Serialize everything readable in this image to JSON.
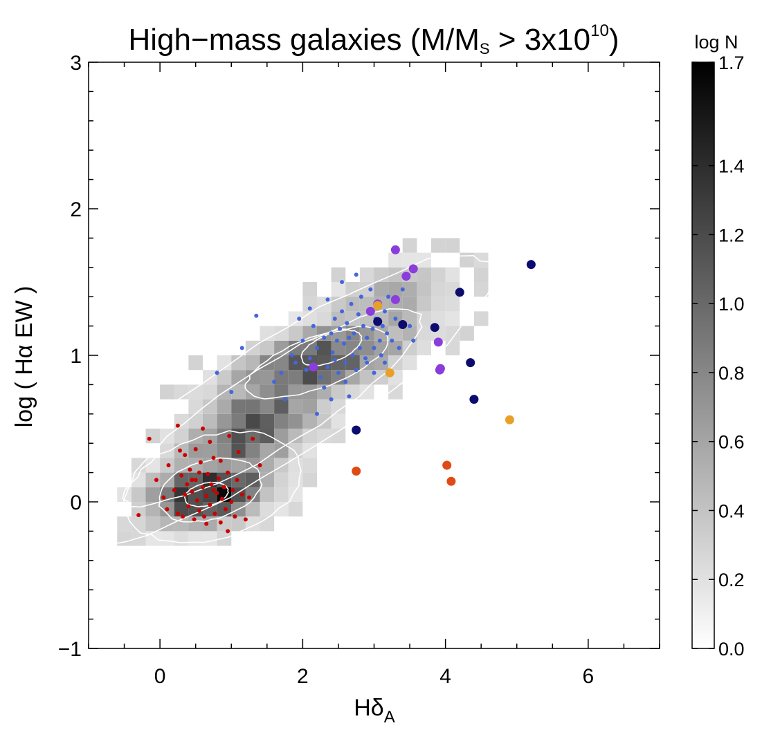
{
  "chart_data": {
    "type": "scatter",
    "title": {
      "prefix": "High−mass galaxies (M/M",
      "sub": "S",
      "mid": " > 3x10",
      "sup": "10",
      "suffix": ")"
    },
    "xlabel": {
      "main": "Hδ",
      "sub": "A"
    },
    "ylabel": "log ( Hα EW )",
    "xlim": [
      -1,
      7
    ],
    "ylim": [
      -1.0,
      3.0
    ],
    "xticks": [
      0,
      2,
      4,
      6
    ],
    "xtick_labels": [
      "0",
      "2",
      "4",
      "6"
    ],
    "yticks": [
      -1,
      0,
      1,
      2,
      3
    ],
    "ytick_labels": [
      "−1",
      "0",
      "1",
      "2",
      "3"
    ],
    "colorbar": {
      "title": "log N",
      "range": [
        0.0,
        1.7
      ],
      "ticks": [
        0.0,
        0.2,
        0.4,
        0.6,
        0.8,
        1.0,
        1.2,
        1.4,
        1.7
      ],
      "tick_labels": [
        "0.0",
        "0.2",
        "0.4",
        "0.6",
        "0.8",
        "1.0",
        "1.2",
        "1.4",
        "1.7"
      ]
    },
    "density_background": {
      "description": "grey-scale 2D histogram of galaxies (log N)",
      "bin_width_x": 0.2,
      "bin_height_y": 0.1,
      "components": [
        {
          "cx": 0.7,
          "cy": 0.07,
          "sx": 0.55,
          "sy": 0.15,
          "rho": 0.3,
          "peak": 1.65
        },
        {
          "cx": 2.2,
          "cy": 0.95,
          "sx": 0.9,
          "sy": 0.22,
          "rho": 0.65,
          "peak": 1.15
        },
        {
          "cx": 1.3,
          "cy": 0.5,
          "sx": 0.7,
          "sy": 0.3,
          "rho": 0.6,
          "peak": 1.1
        },
        {
          "cx": 3.2,
          "cy": 1.35,
          "sx": 0.6,
          "sy": 0.18,
          "rho": 0.4,
          "peak": 0.6
        }
      ]
    },
    "series": [
      {
        "name": "red-small",
        "color": "#cc0000",
        "radius": "small",
        "points": [
          [
            -0.3,
            -0.09
          ],
          [
            -0.15,
            0.43
          ],
          [
            -0.05,
            0.15
          ],
          [
            0.05,
            0.03
          ],
          [
            0.1,
            -0.05
          ],
          [
            0.12,
            0.25
          ],
          [
            0.2,
            0.08
          ],
          [
            0.25,
            -0.08
          ],
          [
            0.28,
            0.35
          ],
          [
            0.3,
            0.18
          ],
          [
            0.32,
            -0.1
          ],
          [
            0.35,
            0.05
          ],
          [
            0.38,
            0.12
          ],
          [
            0.4,
            -0.03
          ],
          [
            0.42,
            0.22
          ],
          [
            0.45,
            0.07
          ],
          [
            0.48,
            -0.12
          ],
          [
            0.5,
            0.15
          ],
          [
            0.52,
            0.01
          ],
          [
            0.55,
            -0.06
          ],
          [
            0.57,
            0.27
          ],
          [
            0.6,
            0.1
          ],
          [
            0.62,
            -0.1
          ],
          [
            0.65,
            0.04
          ],
          [
            0.67,
            0.19
          ],
          [
            0.7,
            -0.02
          ],
          [
            0.72,
            0.12
          ],
          [
            0.75,
            0.3
          ],
          [
            0.77,
            -0.08
          ],
          [
            0.8,
            0.06
          ],
          [
            0.82,
            0.16
          ],
          [
            0.85,
            -0.14
          ],
          [
            0.87,
            0.02
          ],
          [
            0.9,
            0.1
          ],
          [
            0.92,
            -0.05
          ],
          [
            0.95,
            0.2
          ],
          [
            0.97,
            0.45
          ],
          [
            1.0,
            0.0
          ],
          [
            1.02,
            0.08
          ],
          [
            1.05,
            -0.1
          ],
          [
            1.08,
            0.15
          ],
          [
            1.1,
            0.34
          ],
          [
            1.15,
            0.05
          ],
          [
            1.2,
            -0.12
          ],
          [
            1.25,
            0.03
          ],
          [
            1.3,
            0.43
          ],
          [
            1.4,
            0.25
          ],
          [
            0.45,
            0.15
          ],
          [
            0.55,
            0.2
          ],
          [
            0.65,
            -0.15
          ],
          [
            0.75,
            0.08
          ],
          [
            0.85,
            0.28
          ],
          [
            0.35,
            0.32
          ],
          [
            0.25,
            0.52
          ],
          [
            0.95,
            -0.2
          ],
          [
            0.5,
            0.36
          ],
          [
            0.7,
            0.41
          ],
          [
            0.6,
            0.5
          ]
        ]
      },
      {
        "name": "blue-small",
        "color": "#4466dd",
        "radius": "small",
        "points": [
          [
            0.8,
            0.88
          ],
          [
            1.0,
            0.75
          ],
          [
            1.15,
            1.05
          ],
          [
            1.35,
            1.27
          ],
          [
            1.6,
            0.82
          ],
          [
            1.7,
            0.88
          ],
          [
            1.85,
            1.0
          ],
          [
            1.9,
            0.95
          ],
          [
            2.0,
            1.1
          ],
          [
            2.05,
            0.9
          ],
          [
            2.1,
            0.98
          ],
          [
            2.15,
            1.2
          ],
          [
            2.2,
            1.05
          ],
          [
            2.25,
            0.85
          ],
          [
            2.3,
            1.12
          ],
          [
            2.35,
            0.92
          ],
          [
            2.4,
            1.15
          ],
          [
            2.42,
            1.02
          ],
          [
            2.45,
            1.25
          ],
          [
            2.48,
            1.1
          ],
          [
            2.5,
            0.88
          ],
          [
            2.52,
            1.18
          ],
          [
            2.55,
            1.3
          ],
          [
            2.58,
            1.08
          ],
          [
            2.6,
            0.95
          ],
          [
            2.62,
            1.22
          ],
          [
            2.65,
            1.12
          ],
          [
            2.68,
            1.35
          ],
          [
            2.7,
            1.0
          ],
          [
            2.72,
            1.15
          ],
          [
            2.75,
            0.9
          ],
          [
            2.78,
            1.28
          ],
          [
            2.8,
            1.05
          ],
          [
            2.82,
            1.4
          ],
          [
            2.85,
            1.2
          ],
          [
            2.88,
            0.98
          ],
          [
            2.9,
            1.12
          ],
          [
            2.92,
            1.3
          ],
          [
            2.95,
            1.45
          ],
          [
            2.98,
            1.18
          ],
          [
            3.0,
            1.05
          ],
          [
            3.02,
            1.25
          ],
          [
            3.05,
            1.35
          ],
          [
            3.08,
            1.1
          ],
          [
            3.1,
            1.0
          ],
          [
            3.12,
            1.2
          ],
          [
            3.15,
            1.3
          ],
          [
            3.18,
            1.15
          ],
          [
            3.2,
            1.4
          ],
          [
            3.25,
            1.1
          ],
          [
            3.3,
            1.25
          ],
          [
            3.35,
            1.05
          ],
          [
            3.4,
            1.45
          ],
          [
            3.5,
            1.2
          ],
          [
            3.55,
            1.1
          ],
          [
            2.3,
            0.78
          ],
          [
            2.4,
            0.7
          ],
          [
            2.6,
            0.82
          ],
          [
            2.1,
            1.32
          ],
          [
            1.95,
            1.25
          ],
          [
            2.55,
            1.5
          ],
          [
            2.35,
            1.38
          ],
          [
            2.75,
            1.55
          ],
          [
            1.75,
            0.7
          ],
          [
            2.9,
            0.95
          ],
          [
            3.0,
            0.88
          ],
          [
            3.15,
            0.95
          ],
          [
            2.2,
            0.6
          ],
          [
            2.45,
            0.97
          ],
          [
            2.65,
            0.72
          ]
        ]
      },
      {
        "name": "purple",
        "color": "#8a3ddb",
        "radius": "large",
        "points": [
          [
            2.15,
            0.92
          ],
          [
            2.95,
            1.3
          ],
          [
            3.05,
            1.35
          ],
          [
            3.3,
            1.72
          ],
          [
            3.3,
            1.38
          ],
          [
            3.45,
            1.54
          ],
          [
            3.55,
            1.59
          ],
          [
            3.9,
            1.09
          ],
          [
            3.92,
            0.9
          ],
          [
            3.93,
            0.91
          ]
        ]
      },
      {
        "name": "navy",
        "color": "#0c0c6e",
        "radius": "large",
        "points": [
          [
            2.75,
            0.49
          ],
          [
            3.05,
            1.23
          ],
          [
            3.4,
            1.21
          ],
          [
            3.85,
            1.19
          ],
          [
            4.2,
            1.43
          ],
          [
            4.35,
            0.95
          ],
          [
            4.4,
            0.7
          ],
          [
            5.2,
            1.62
          ]
        ]
      },
      {
        "name": "orange",
        "color": "#e8a028",
        "radius": "large",
        "points": [
          [
            3.05,
            1.34
          ],
          [
            3.22,
            0.88
          ],
          [
            4.9,
            0.56
          ]
        ]
      },
      {
        "name": "orange-red",
        "color": "#e04a14",
        "radius": "large",
        "points": [
          [
            2.75,
            0.21
          ],
          [
            4.02,
            0.25
          ],
          [
            4.08,
            0.14
          ]
        ]
      }
    ]
  }
}
